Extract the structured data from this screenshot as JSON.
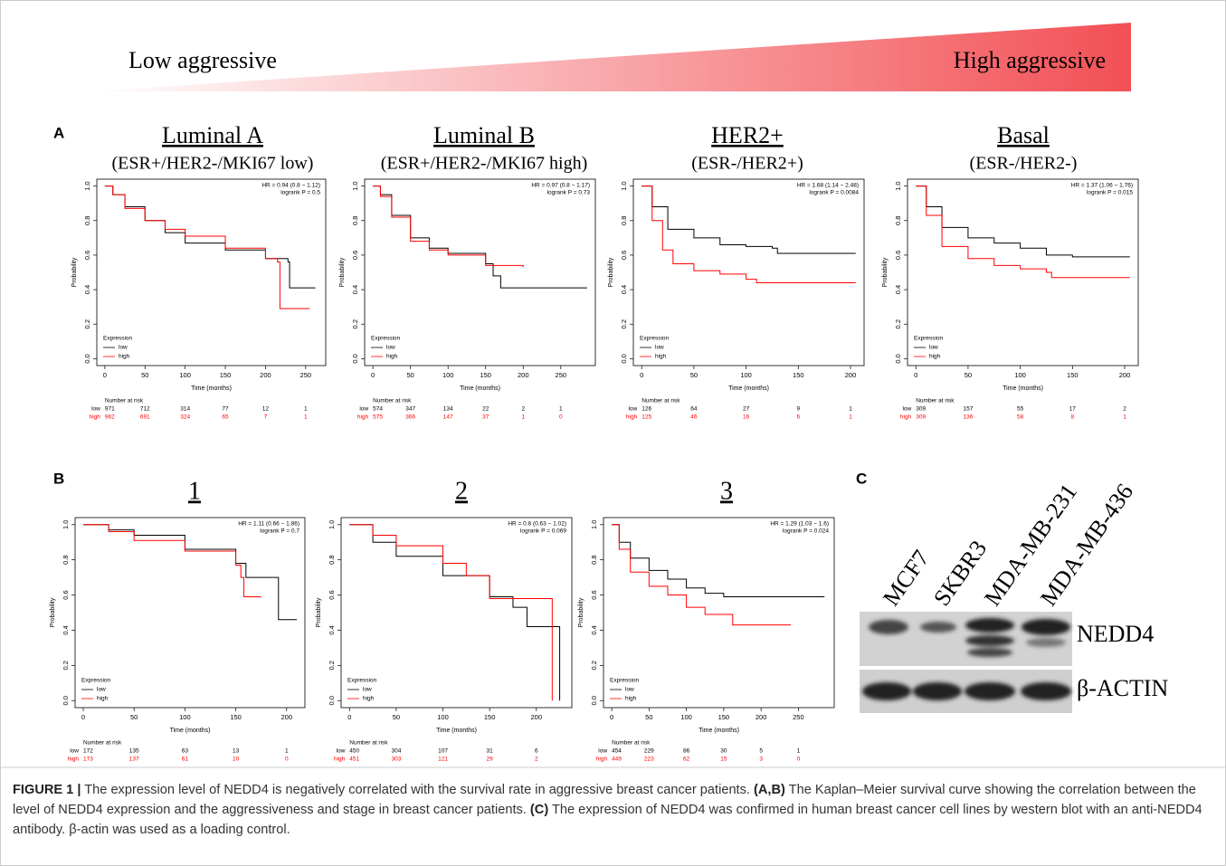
{
  "gradient": {
    "left": "Low aggressive",
    "right": "High aggressive"
  },
  "panels": [
    "A",
    "B",
    "C"
  ],
  "chart_data": [
    {
      "type": "line",
      "title": "Luminal A",
      "subtitle": "(ESR+/HER2-/MKI67 low)",
      "xlabel": "Time (months)",
      "ylabel": "Probability",
      "hr": "HR = 0.94 (0.8 − 1.12)",
      "logrank": "logrank P = 0.5",
      "legend_title": "Expression",
      "xlim": [
        -10,
        275
      ],
      "xticks": [
        0,
        50,
        100,
        150,
        200,
        250
      ],
      "ylim": [
        -0.04,
        1.04
      ],
      "yticks": [
        {
          "value": 0,
          "label": "0.0"
        },
        0.2,
        0.4,
        0.6,
        0.8,
        {
          "value": 1,
          "label": "1.0"
        }
      ],
      "series": [
        {
          "name": "low",
          "color": "#000000",
          "x": [
            0,
            10,
            25,
            50,
            75,
            100,
            150,
            200,
            228,
            230,
            262
          ],
          "values": [
            1,
            0.95,
            0.88,
            0.8,
            0.73,
            0.67,
            0.63,
            0.58,
            0.56,
            0.41,
            0.41
          ]
        },
        {
          "name": "high",
          "color": "#ff0000",
          "x": [
            0,
            10,
            25,
            50,
            75,
            100,
            150,
            200,
            215,
            218,
            255
          ],
          "values": [
            1,
            0.95,
            0.87,
            0.8,
            0.75,
            0.71,
            0.64,
            0.58,
            0.56,
            0.29,
            0.29
          ]
        }
      ],
      "risk_table": {
        "title": "Number at risk",
        "low": [
          "971",
          "712",
          "314",
          "77",
          "12",
          "1"
        ],
        "high": [
          "962",
          "691",
          "324",
          "65",
          "7",
          "1"
        ]
      }
    },
    {
      "type": "line",
      "title": "Luminal B",
      "subtitle": "(ESR+/HER2-/MKI67 high)",
      "xlabel": "Time (months)",
      "ylabel": "Probability",
      "hr": "HR = 0.97 (0.8 − 1.17)",
      "logrank": "logrank P = 0.73",
      "legend_title": "Expression",
      "xlim": [
        -11,
        296
      ],
      "xticks": [
        0,
        50,
        100,
        150,
        200,
        250
      ],
      "ylim": [
        -0.04,
        1.04
      ],
      "yticks": [
        {
          "value": 0,
          "label": "0.0"
        },
        0.2,
        0.4,
        0.6,
        0.8,
        {
          "value": 1,
          "label": "1.0"
        }
      ],
      "series": [
        {
          "name": "low",
          "color": "#000000",
          "x": [
            0,
            10,
            25,
            50,
            75,
            100,
            150,
            160,
            170,
            285
          ],
          "values": [
            1,
            0.95,
            0.83,
            0.7,
            0.64,
            0.61,
            0.55,
            0.48,
            0.41,
            0.41
          ]
        },
        {
          "name": "high",
          "color": "#ff0000",
          "x": [
            0,
            10,
            25,
            50,
            75,
            100,
            150,
            200
          ],
          "values": [
            1,
            0.94,
            0.82,
            0.68,
            0.63,
            0.6,
            0.54,
            0.53
          ]
        }
      ],
      "risk_table": {
        "title": "Number at risk",
        "low": [
          "574",
          "347",
          "134",
          "22",
          "2",
          "1"
        ],
        "high": [
          "575",
          "366",
          "147",
          "37",
          "1",
          "0"
        ]
      }
    },
    {
      "type": "line",
      "title": "HER2+",
      "subtitle": "(ESR-/HER2+)",
      "xlabel": "Time (months)",
      "ylabel": "Probability",
      "hr": "HR = 1.68 (1.14 − 2.48)",
      "logrank": "logrank P = 0.0084",
      "legend_title": "Expression",
      "xlim": [
        -8,
        213
      ],
      "xticks": [
        0,
        50,
        100,
        150,
        200
      ],
      "ylim": [
        -0.04,
        1.04
      ],
      "yticks": [
        {
          "value": 0,
          "label": "0.0"
        },
        0.2,
        0.4,
        0.6,
        0.8,
        {
          "value": 1,
          "label": "1.0"
        }
      ],
      "series": [
        {
          "name": "low",
          "color": "#000000",
          "x": [
            0,
            10,
            25,
            50,
            75,
            100,
            125,
            130,
            205
          ],
          "values": [
            1,
            0.88,
            0.75,
            0.7,
            0.66,
            0.65,
            0.64,
            0.61,
            0.61
          ]
        },
        {
          "name": "high",
          "color": "#ff0000",
          "x": [
            0,
            10,
            20,
            30,
            50,
            75,
            100,
            110,
            205
          ],
          "values": [
            1,
            0.8,
            0.63,
            0.55,
            0.51,
            0.49,
            0.46,
            0.44,
            0.44
          ]
        }
      ],
      "risk_table": {
        "title": "Number at risk",
        "low": [
          "126",
          "64",
          "27",
          "9",
          "1"
        ],
        "high": [
          "125",
          "46",
          "16",
          "6",
          "1"
        ]
      }
    },
    {
      "type": "line",
      "title": "Basal",
      "subtitle": "(ESR-/HER2-)",
      "xlabel": "Time (months)",
      "ylabel": "Probability",
      "hr": "HR = 1.37 (1.06 − 1.76)",
      "logrank": "logrank P = 0.015",
      "legend_title": "Expression",
      "xlim": [
        -8,
        213
      ],
      "xticks": [
        0,
        50,
        100,
        150,
        200
      ],
      "ylim": [
        -0.04,
        1.04
      ],
      "yticks": [
        {
          "value": 0,
          "label": "0.0"
        },
        0.2,
        0.4,
        0.6,
        0.8,
        {
          "value": 1,
          "label": "1.0"
        }
      ],
      "series": [
        {
          "name": "low",
          "color": "#000000",
          "x": [
            0,
            10,
            25,
            50,
            75,
            100,
            125,
            150,
            205
          ],
          "values": [
            1,
            0.88,
            0.76,
            0.7,
            0.67,
            0.64,
            0.6,
            0.59,
            0.59
          ]
        },
        {
          "name": "high",
          "color": "#ff0000",
          "x": [
            0,
            10,
            25,
            50,
            75,
            100,
            125,
            130,
            205
          ],
          "values": [
            1,
            0.83,
            0.65,
            0.58,
            0.54,
            0.52,
            0.5,
            0.47,
            0.47
          ]
        }
      ],
      "risk_table": {
        "title": "Number at risk",
        "low": [
          "309",
          "157",
          "55",
          "17",
          "2"
        ],
        "high": [
          "309",
          "136",
          "58",
          "8",
          "1"
        ]
      }
    },
    {
      "type": "line",
      "title": "1",
      "xlabel": "Time (months)",
      "ylabel": "Probability",
      "hr": "HR = 1.11 (0.66 − 1.86)",
      "logrank": "logrank P = 0.7",
      "legend_title": "Expression",
      "xlim": [
        -8,
        218
      ],
      "xticks": [
        0,
        50,
        100,
        150,
        200
      ],
      "ylim": [
        -0.04,
        1.04
      ],
      "yticks": [
        {
          "value": 0,
          "label": "0.0"
        },
        0.2,
        0.4,
        0.6,
        0.8,
        {
          "value": 1,
          "label": "1.0"
        }
      ],
      "series": [
        {
          "name": "low",
          "color": "#000000",
          "x": [
            0,
            25,
            50,
            100,
            150,
            160,
            190,
            192,
            210
          ],
          "values": [
            1,
            0.97,
            0.94,
            0.86,
            0.78,
            0.7,
            0.7,
            0.46,
            0.46
          ]
        },
        {
          "name": "high",
          "color": "#ff0000",
          "x": [
            0,
            25,
            50,
            100,
            150,
            155,
            158,
            175
          ],
          "values": [
            1,
            0.96,
            0.91,
            0.85,
            0.77,
            0.7,
            0.59,
            0.59
          ]
        }
      ],
      "risk_table": {
        "title": "Number at risk",
        "low": [
          "172",
          "135",
          "63",
          "13",
          "1"
        ],
        "high": [
          "173",
          "137",
          "61",
          "10",
          "0"
        ]
      }
    },
    {
      "type": "line",
      "title": "2",
      "xlabel": "Time (months)",
      "ylabel": "Probability",
      "hr": "HR = 0.8 (0.63 − 1.02)",
      "logrank": "logrank P = 0.069",
      "legend_title": "Expression",
      "xlim": [
        -9,
        238
      ],
      "xticks": [
        0,
        50,
        100,
        150,
        200
      ],
      "ylim": [
        -0.04,
        1.04
      ],
      "yticks": [
        {
          "value": 0,
          "label": "0.0"
        },
        0.2,
        0.4,
        0.6,
        0.8,
        {
          "value": 1,
          "label": "1.0"
        }
      ],
      "series": [
        {
          "name": "low",
          "color": "#000000",
          "x": [
            0,
            25,
            50,
            100,
            150,
            175,
            190,
            222,
            225
          ],
          "values": [
            1,
            0.9,
            0.82,
            0.71,
            0.59,
            0.53,
            0.42,
            0.42,
            0
          ]
        },
        {
          "name": "high",
          "color": "#ff0000",
          "x": [
            0,
            25,
            50,
            100,
            125,
            150,
            200,
            215,
            217
          ],
          "values": [
            1,
            0.94,
            0.88,
            0.78,
            0.71,
            0.58,
            0.58,
            0.58,
            0
          ]
        }
      ],
      "risk_table": {
        "title": "Number at risk",
        "low": [
          "450",
          "304",
          "107",
          "31",
          "6"
        ],
        "high": [
          "451",
          "303",
          "121",
          "29",
          "2"
        ]
      }
    },
    {
      "type": "line",
      "title": "3",
      "xlabel": "Time (months)",
      "ylabel": "Probability",
      "hr": "HR = 1.29 (1.03 − 1.6)",
      "logrank": "logrank P = 0.024",
      "legend_title": "Expression",
      "xlim": [
        -11,
        298
      ],
      "xticks": [
        0,
        50,
        100,
        150,
        200,
        250
      ],
      "ylim": [
        -0.04,
        1.04
      ],
      "yticks": [
        {
          "value": 0,
          "label": "0.0"
        },
        0.2,
        0.4,
        0.6,
        0.8,
        {
          "value": 1,
          "label": "1.0"
        }
      ],
      "series": [
        {
          "name": "low",
          "color": "#000000",
          "x": [
            0,
            10,
            25,
            50,
            75,
            100,
            125,
            150,
            285
          ],
          "values": [
            1,
            0.9,
            0.81,
            0.74,
            0.69,
            0.64,
            0.61,
            0.59,
            0.59
          ]
        },
        {
          "name": "high",
          "color": "#ff0000",
          "x": [
            0,
            10,
            25,
            50,
            75,
            100,
            125,
            160,
            162,
            240
          ],
          "values": [
            1,
            0.86,
            0.73,
            0.65,
            0.6,
            0.53,
            0.49,
            0.49,
            0.43,
            0.43
          ]
        }
      ],
      "risk_table": {
        "title": "Number at risk",
        "low": [
          "454",
          "229",
          "86",
          "30",
          "5",
          "1"
        ],
        "high": [
          "449",
          "223",
          "62",
          "15",
          "3",
          "0"
        ]
      }
    }
  ],
  "blot": {
    "cell_lines": [
      "MCF7",
      "SKBR3",
      "MDA-MB-231",
      "MDA-MB-436"
    ],
    "bands": [
      "NEDD4",
      "β-ACTIN"
    ]
  },
  "caption": {
    "label": "FIGURE 1 |",
    "text1": " The expression level of NEDD4 is negatively correlated with the survival rate in aggressive breast cancer patients. ",
    "ref1": "(A,B)",
    "text2": " The Kaplan–Meier survival curve showing the correlation between the level of NEDD4 expression and the aggressiveness and stage in breast cancer patients. ",
    "ref2": "(C)",
    "text3": " The expression of NEDD4 was confirmed in human breast cancer cell lines by western blot with an anti-NEDD4 antibody. β-actin was used as a loading control."
  }
}
